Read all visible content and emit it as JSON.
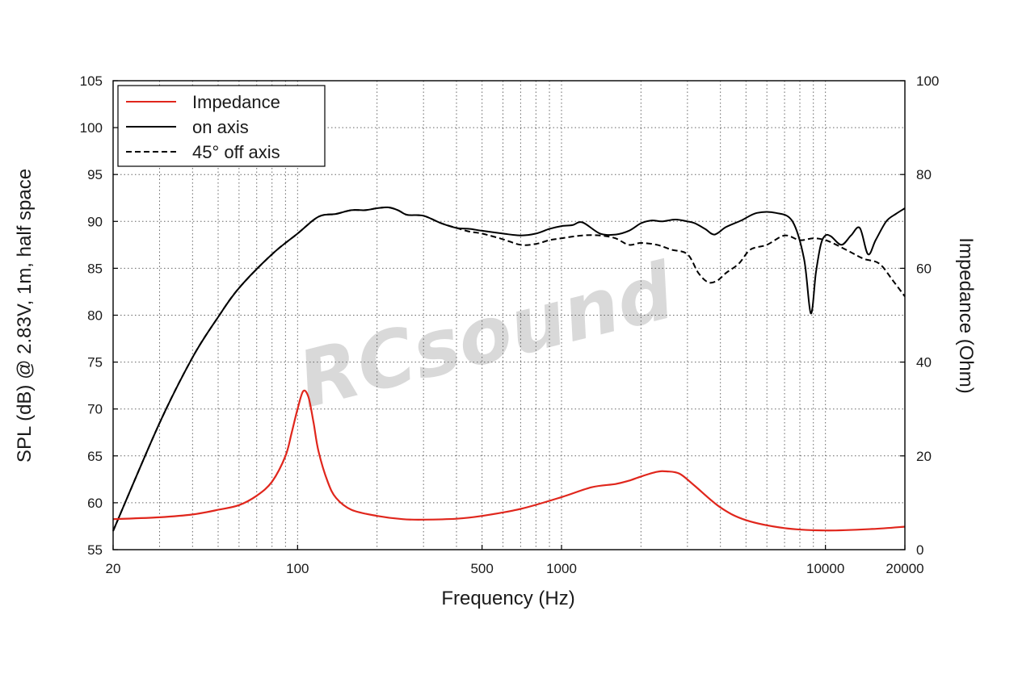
{
  "watermark": "RCsound",
  "chart_data": {
    "type": "line",
    "xlabel": "Frequency (Hz)",
    "ylabel": "SPL (dB) @ 2.83V, 1m, half space",
    "y2label": "Impedance (Ohm)",
    "x_scale": "log",
    "xlim": [
      20,
      20000
    ],
    "ylim": [
      55,
      105
    ],
    "y2lim": [
      0,
      100
    ],
    "grid": true,
    "legend_position": "top-left",
    "x_tick_labels": [
      "20",
      "100",
      "500",
      "1000",
      "10000",
      "20000"
    ],
    "x_ticks": [
      20,
      100,
      500,
      1000,
      10000,
      20000
    ],
    "y_ticks": [
      55,
      60,
      65,
      70,
      75,
      80,
      85,
      90,
      95,
      100,
      105
    ],
    "y_tick_labels": [
      "55",
      "60",
      "65",
      "70",
      "75",
      "80",
      "85",
      "90",
      "95",
      "100",
      "105"
    ],
    "y2_ticks": [
      0,
      20,
      40,
      60,
      80,
      100
    ],
    "y2_tick_labels": [
      "0",
      "20",
      "40",
      "60",
      "80",
      "100"
    ],
    "series": [
      {
        "name": "Impedance",
        "axis": "right",
        "color": "#e0261c",
        "style": "solid",
        "x": [
          20,
          30,
          40,
          50,
          60,
          70,
          80,
          90,
          95,
          100,
          105,
          110,
          115,
          120,
          130,
          140,
          160,
          200,
          250,
          300,
          400,
          500,
          700,
          1000,
          1300,
          1600,
          1800,
          2000,
          2300,
          2500,
          2800,
          3200,
          4000,
          5000,
          7000,
          10000,
          15000,
          20000
        ],
        "y": [
          6.5,
          6.9,
          7.5,
          8.5,
          9.5,
          11.5,
          14.5,
          20,
          25,
          30,
          33.8,
          32.5,
          27,
          21,
          14.5,
          11,
          8.5,
          7.2,
          6.5,
          6.4,
          6.6,
          7.2,
          8.7,
          11.2,
          13.3,
          14,
          14.7,
          15.6,
          16.6,
          16.7,
          16.2,
          13.6,
          9,
          6.3,
          4.6,
          4.1,
          4.4,
          4.9
        ]
      },
      {
        "name": "on axis",
        "axis": "left",
        "color": "#000000",
        "style": "solid",
        "x": [
          20,
          30,
          40,
          50,
          60,
          80,
          100,
          120,
          140,
          160,
          180,
          200,
          220,
          240,
          260,
          300,
          350,
          400,
          450,
          500,
          600,
          700,
          800,
          900,
          1000,
          1100,
          1200,
          1400,
          1600,
          1800,
          2000,
          2200,
          2400,
          2700,
          3000,
          3200,
          3500,
          3800,
          4200,
          4800,
          5500,
          6500,
          7500,
          8300,
          8800,
          9200,
          9600,
          10000,
          10500,
          11500,
          12500,
          13500,
          14500,
          15500,
          17000,
          18500,
          20000
        ],
        "y": [
          57,
          68.5,
          75.5,
          79.8,
          82.9,
          86.5,
          88.7,
          90.5,
          90.8,
          91.2,
          91.2,
          91.4,
          91.5,
          91.2,
          90.7,
          90.6,
          89.8,
          89.3,
          89.2,
          89,
          88.7,
          88.5,
          88.7,
          89.2,
          89.5,
          89.6,
          89.9,
          88.7,
          88.6,
          89,
          89.8,
          90.1,
          90,
          90.2,
          90,
          89.8,
          89.2,
          88.6,
          89.4,
          90.1,
          90.9,
          90.9,
          90,
          86,
          80.2,
          84.5,
          87.5,
          88.5,
          88.4,
          87.5,
          88.5,
          89.3,
          86.5,
          88,
          90,
          90.8,
          91.4
        ]
      },
      {
        "name": "45° off axis",
        "axis": "left",
        "color": "#000000",
        "style": "dashed",
        "x": [
          20,
          30,
          40,
          50,
          60,
          80,
          100,
          120,
          140,
          160,
          180,
          200,
          220,
          240,
          260,
          300,
          350,
          400,
          450,
          500,
          600,
          700,
          800,
          900,
          1000,
          1200,
          1400,
          1600,
          1800,
          2000,
          2300,
          2600,
          3000,
          3300,
          3600,
          3900,
          4200,
          4700,
          5200,
          6000,
          7000,
          8000,
          9000,
          10000,
          11000,
          12500,
          14000,
          16000,
          18000,
          20000
        ],
        "y": [
          57,
          68.5,
          75.5,
          79.8,
          82.9,
          86.5,
          88.7,
          90.5,
          90.8,
          91.2,
          91.2,
          91.4,
          91.5,
          91.2,
          90.7,
          90.6,
          89.8,
          89.3,
          88.9,
          88.7,
          88.1,
          87.5,
          87.6,
          88,
          88.2,
          88.5,
          88.5,
          88.2,
          87.5,
          87.7,
          87.5,
          87,
          86.5,
          84.5,
          83.5,
          83.7,
          84.5,
          85.5,
          87,
          87.5,
          88.5,
          88,
          88.2,
          88,
          87.5,
          86.7,
          86,
          85.5,
          83.7,
          82
        ]
      }
    ]
  }
}
